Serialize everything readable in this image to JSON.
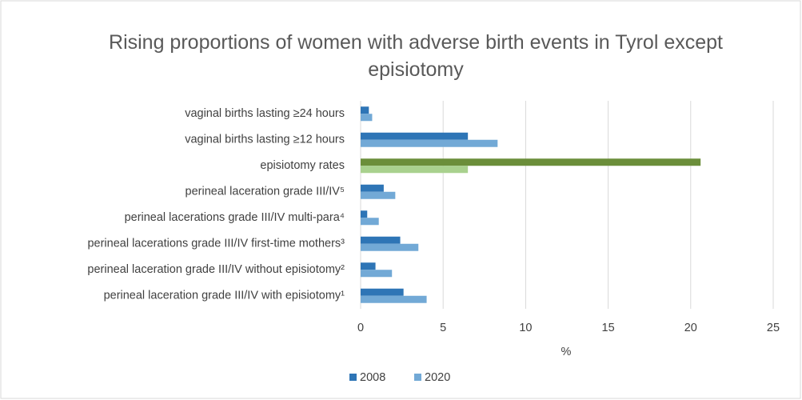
{
  "chart_data": {
    "type": "hbar",
    "title": "Rising proportions of women with adverse birth events in Tyrol except episiotomy",
    "categories": [
      "vaginal births lasting ≥24 hours",
      "vaginal births lasting ≥12 hours",
      "episiotomy rates",
      "perineal laceration grade III/IV⁵",
      "perineal lacerations grade III/IV multi-para⁴",
      "perineal lacerations grade III/IV first-time mothers³",
      "perineal laceration grade III/IV without episiotomy²",
      "perineal laceration grade III/IV with episiotomy¹"
    ],
    "series": [
      {
        "name": "2008",
        "color": "#2e75b6",
        "highlight_color": "#6b8e3a",
        "values": [
          0.5,
          6.5,
          20.6,
          1.4,
          0.4,
          2.4,
          0.9,
          2.6
        ]
      },
      {
        "name": "2020",
        "color": "#72a9d6",
        "highlight_color": "#a9d18e",
        "values": [
          0.7,
          8.3,
          6.5,
          2.1,
          1.1,
          3.5,
          1.9,
          4.0
        ]
      }
    ],
    "highlight_index": 2,
    "xlabel": "%",
    "xlim": [
      0,
      25
    ],
    "xticks": [
      0,
      5,
      10,
      15,
      20,
      25
    ],
    "grid": true,
    "legend": "bottom"
  }
}
